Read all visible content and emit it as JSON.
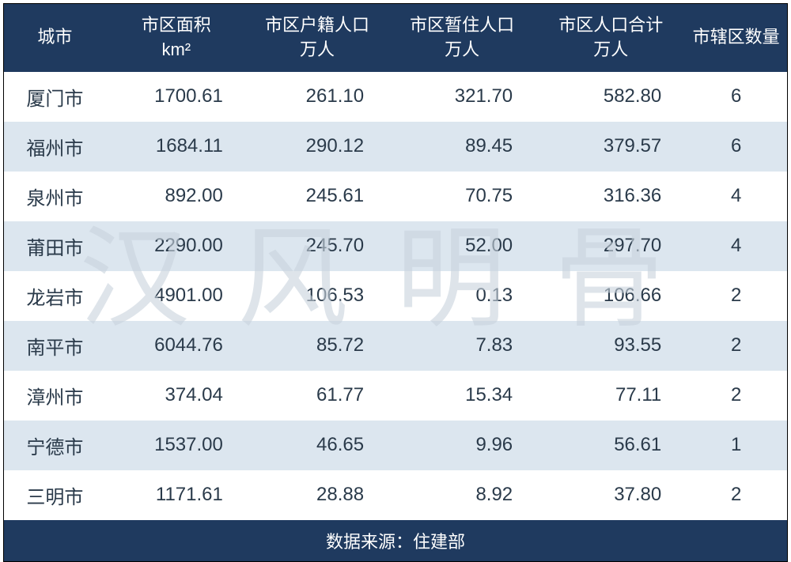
{
  "table": {
    "header_bg": "#1f3a5f",
    "header_color": "#ffffff",
    "row_even_bg": "#dce6ef",
    "row_odd_bg": "#ffffff",
    "text_color": "#2a3a4a",
    "header_fontsize": 22,
    "cell_fontsize": 24,
    "columns": [
      {
        "label_line1": "城市",
        "label_line2": "",
        "width": "13%",
        "align": "center"
      },
      {
        "label_line1": "市区面积",
        "label_line2": "km²",
        "width": "18%",
        "align": "right"
      },
      {
        "label_line1": "市区户籍人口",
        "label_line2": "万人",
        "width": "18%",
        "align": "right"
      },
      {
        "label_line1": "市区暂住人口",
        "label_line2": "万人",
        "width": "19%",
        "align": "right"
      },
      {
        "label_line1": "市区人口合计",
        "label_line2": "万人",
        "width": "19%",
        "align": "right"
      },
      {
        "label_line1": "市辖区数量",
        "label_line2": "",
        "width": "13%",
        "align": "center"
      }
    ],
    "rows": [
      [
        "厦门市",
        "1700.61",
        "261.10",
        "321.70",
        "582.80",
        "6"
      ],
      [
        "福州市",
        "1684.11",
        "290.12",
        "89.45",
        "379.57",
        "6"
      ],
      [
        "泉州市",
        "892.00",
        "245.61",
        "70.75",
        "316.36",
        "4"
      ],
      [
        "莆田市",
        "2290.00",
        "245.70",
        "52.00",
        "297.70",
        "4"
      ],
      [
        "龙岩市",
        "4901.00",
        "106.53",
        "0.13",
        "106.66",
        "2"
      ],
      [
        "南平市",
        "6044.76",
        "85.72",
        "7.83",
        "93.55",
        "2"
      ],
      [
        "漳州市",
        "374.04",
        "61.77",
        "15.34",
        "77.11",
        "2"
      ],
      [
        "宁德市",
        "1537.00",
        "46.65",
        "9.96",
        "56.61",
        "1"
      ],
      [
        "三明市",
        "1171.61",
        "28.88",
        "8.92",
        "37.80",
        "2"
      ]
    ],
    "footer_label": "数据来源：住建部"
  },
  "watermark": {
    "text": "汉风明骨",
    "color": "rgba(200,210,220,0.6)",
    "fontsize": 140
  }
}
